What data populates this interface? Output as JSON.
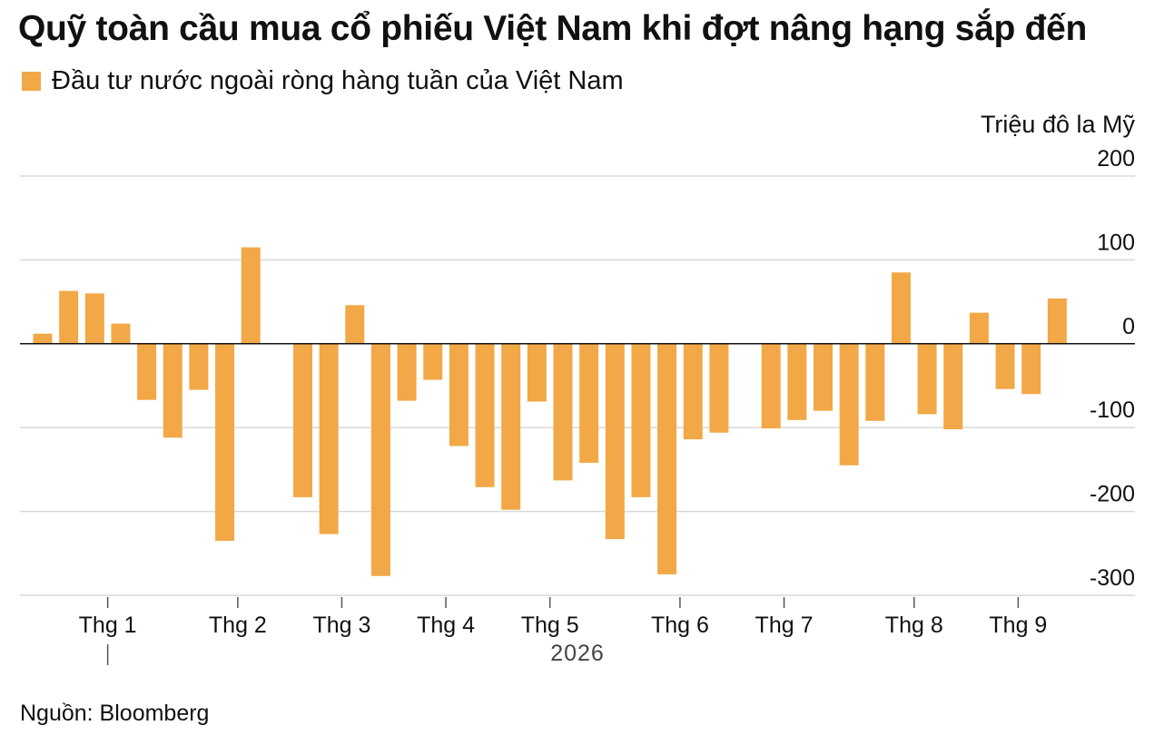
{
  "title": "Quỹ toàn cầu mua cổ phiếu Việt Nam khi đợt nâng hạng sắp đến",
  "legend": {
    "label": "Đầu tư nước ngoài ròng hàng tuần của Việt Nam"
  },
  "source": "Nguồn: Bloomberg",
  "colors": {
    "bar": "#f2a846",
    "grid": "#d9d9d9",
    "zero": "#111111"
  },
  "chart_data": {
    "type": "bar",
    "title": "Quỹ toàn cầu mua cổ phiếu Việt Nam khi đợt nâng hạng sắp đến",
    "ylabel": "Triệu đô la Mỹ",
    "xlabel": "2026",
    "ylim": [
      -300,
      200
    ],
    "yticks": [
      200,
      100,
      0,
      -100,
      -200,
      -300
    ],
    "ytick_labels": [
      "200",
      "100",
      "0",
      "-100",
      "-200",
      "-300"
    ],
    "grid": true,
    "legend_position": "top-left",
    "x_tick_labels": [
      "Thg 1",
      "Thg 2",
      "Thg 3",
      "Thg 4",
      "Thg 5",
      "Thg 6",
      "Thg 7",
      "Thg 8",
      "Thg 9"
    ],
    "x_tick_weeks": [
      2.5,
      7.5,
      11.5,
      15.5,
      19.5,
      24.5,
      28.5,
      33.5,
      37.5
    ],
    "year_label": "2026",
    "series": [
      {
        "name": "Đầu tư nước ngoài ròng hàng tuần của Việt Nam",
        "values": [
          12,
          63,
          60,
          24,
          -67,
          -112,
          -55,
          -235,
          115,
          0,
          -183,
          -227,
          46,
          -277,
          -68,
          -43,
          -122,
          -171,
          -198,
          -69,
          -163,
          -142,
          -233,
          -183,
          -275,
          -114,
          -106,
          0,
          -101,
          -91,
          -80,
          -145,
          -92,
          85,
          -84,
          -102,
          37,
          -54,
          -60,
          54
        ]
      }
    ]
  }
}
